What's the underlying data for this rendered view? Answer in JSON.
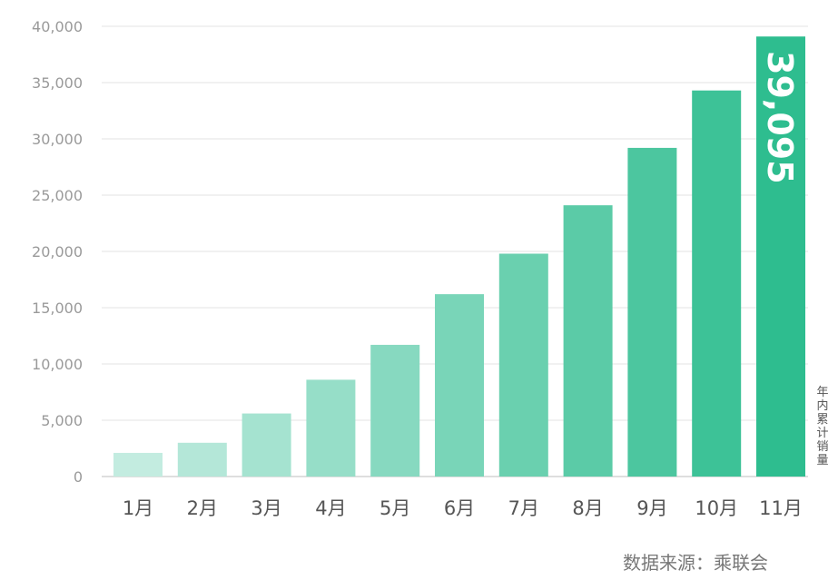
{
  "chart_data": {
    "type": "bar",
    "categories": [
      "1月",
      "2月",
      "3月",
      "4月",
      "5月",
      "6月",
      "7月",
      "8月",
      "9月",
      "10月",
      "11月"
    ],
    "values": [
      2100,
      3000,
      5600,
      8600,
      11700,
      16200,
      19800,
      24100,
      29200,
      34300,
      39095
    ],
    "highlight_label": "39,095",
    "side_label": "年内累计销量",
    "ylim": [
      0,
      40000
    ],
    "yticks": [
      "0",
      "5,000",
      "10,000",
      "15,000",
      "20,000",
      "25,000",
      "30,000",
      "35,000",
      "40,000"
    ],
    "ytick_values": [
      0,
      5000,
      10000,
      15000,
      20000,
      25000,
      30000,
      35000,
      40000
    ],
    "grid": true,
    "colors": {
      "light": "#c3ece0",
      "dark": "#2ebd8f",
      "grid": "#e3e3e3",
      "text": "#555555"
    }
  },
  "source": "数据来源：乘联会"
}
